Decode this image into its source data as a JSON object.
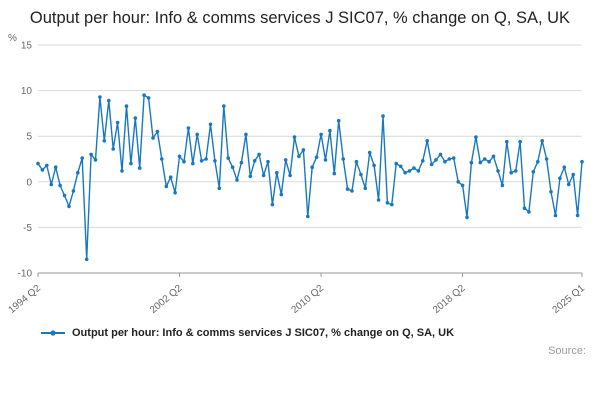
{
  "accent_color": "#1878be",
  "grid_color": "#d9d9d9",
  "axis_color": "#999999",
  "tick_text_color": "#666666",
  "footer": {
    "source_label": "Source:"
  },
  "legend": {
    "label": "Output per hour: Info & comms services J SIC07, % change on Q, SA, UK"
  },
  "chart_data": {
    "type": "line",
    "title": "Output per hour: Info & comms services J SIC07, % change on Q, SA, UK",
    "xlabel": "",
    "ylabel": "%",
    "ylim": [
      -10,
      15
    ],
    "yticks": [
      -10,
      -5,
      0,
      5,
      10,
      15
    ],
    "grid": true,
    "legend_position": "bottom",
    "markers": true,
    "x": {
      "start_year": 1994,
      "start_quarter": 2,
      "frequency": "quarterly"
    },
    "x_ticks": [
      {
        "label": "1994 Q2",
        "index": 0
      },
      {
        "label": "2002 Q2",
        "index": 32
      },
      {
        "label": "2010 Q2",
        "index": 64
      },
      {
        "label": "2018 Q2",
        "index": 96
      },
      {
        "label": "2025 Q1",
        "index": 123
      }
    ],
    "series": [
      {
        "name": "Output per hour: Info & comms services J SIC07, % change on Q, SA, UK",
        "values": [
          2.0,
          1.3,
          1.8,
          -0.3,
          1.6,
          -0.4,
          -1.5,
          -2.7,
          -1.0,
          1.0,
          2.6,
          -8.5,
          3.0,
          2.4,
          9.3,
          4.5,
          8.9,
          3.6,
          6.5,
          1.2,
          8.3,
          2.0,
          7.0,
          1.5,
          9.5,
          9.2,
          4.8,
          5.5,
          2.5,
          -0.5,
          0.5,
          -1.2,
          2.8,
          2.2,
          5.9,
          2.0,
          5.2,
          2.3,
          2.5,
          6.3,
          2.3,
          -0.7,
          8.3,
          2.6,
          1.6,
          0.2,
          2.1,
          5.2,
          0.6,
          2.3,
          3.0,
          0.7,
          2.2,
          -2.5,
          1.0,
          -1.4,
          2.4,
          0.7,
          4.9,
          2.8,
          3.5,
          -3.8,
          1.6,
          2.7,
          5.2,
          2.4,
          5.6,
          0.9,
          6.7,
          2.5,
          -0.8,
          -1.0,
          2.2,
          0.8,
          -0.7,
          3.2,
          1.8,
          -2.0,
          7.2,
          -2.3,
          -2.5,
          2.0,
          1.7,
          1.0,
          1.2,
          1.5,
          1.2,
          2.3,
          4.5,
          1.9,
          2.4,
          3.0,
          2.2,
          2.5,
          2.6,
          0.0,
          -0.4,
          -3.9,
          2.1,
          4.9,
          2.1,
          2.5,
          2.2,
          2.8,
          1.2,
          -0.4,
          4.4,
          1.0,
          1.2,
          4.4,
          -2.9,
          -3.3,
          1.1,
          2.2,
          4.5,
          2.5,
          -1.1,
          -3.7,
          0.4,
          1.6,
          -0.3,
          0.8,
          -3.7,
          2.2
        ]
      }
    ]
  }
}
